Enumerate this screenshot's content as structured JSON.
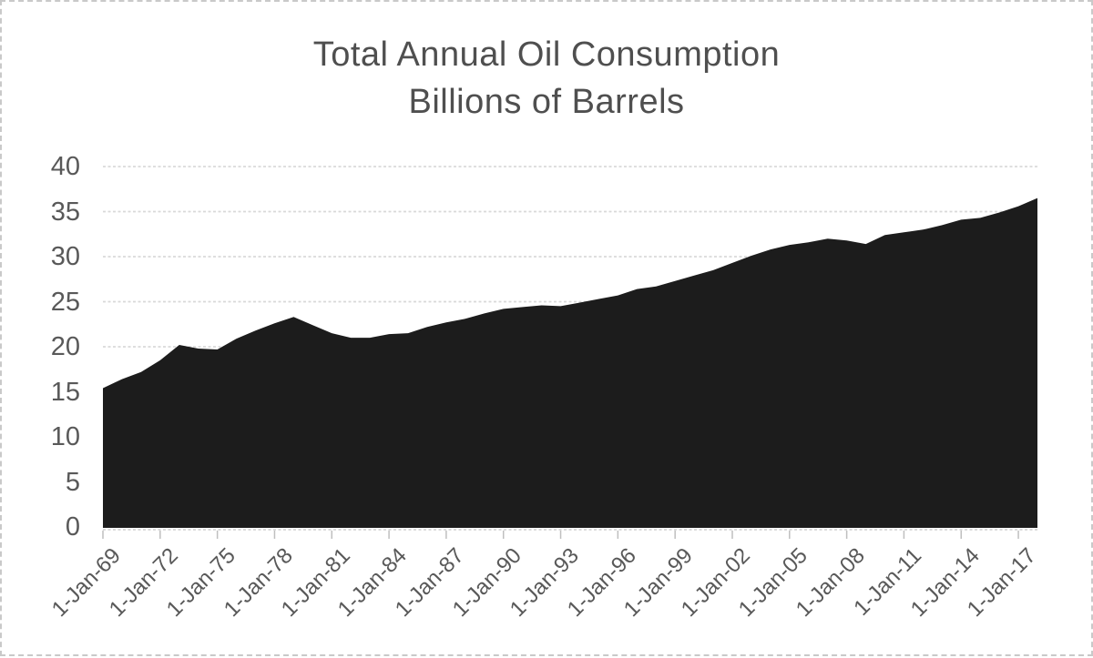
{
  "chart_data": {
    "type": "area",
    "title_line1": "Total Annual Oil Consumption",
    "title_line2": "Billions of Barrels",
    "xlabel": "",
    "ylabel": "",
    "ylim": [
      0,
      40
    ],
    "y_ticks": [
      0,
      5,
      10,
      15,
      20,
      25,
      30,
      35,
      40
    ],
    "grid": true,
    "legend": "none",
    "x_tick_labels": [
      "1-Jan-69",
      "1-Jan-72",
      "1-Jan-75",
      "1-Jan-78",
      "1-Jan-81",
      "1-Jan-84",
      "1-Jan-87",
      "1-Jan-90",
      "1-Jan-93",
      "1-Jan-96",
      "1-Jan-99",
      "1-Jan-02",
      "1-Jan-05",
      "1-Jan-08",
      "1-Jan-11",
      "1-Jan-14",
      "1-Jan-17"
    ],
    "x": [
      1969,
      1970,
      1971,
      1972,
      1973,
      1974,
      1975,
      1976,
      1977,
      1978,
      1979,
      1980,
      1981,
      1982,
      1983,
      1984,
      1985,
      1986,
      1987,
      1988,
      1989,
      1990,
      1991,
      1992,
      1993,
      1994,
      1995,
      1996,
      1997,
      1998,
      1999,
      2000,
      2001,
      2002,
      2003,
      2004,
      2005,
      2006,
      2007,
      2008,
      2009,
      2010,
      2011,
      2012,
      2013,
      2014,
      2015,
      2016,
      2017,
      2018
    ],
    "values": [
      15.4,
      16.4,
      17.2,
      18.5,
      20.2,
      19.8,
      19.7,
      20.9,
      21.8,
      22.6,
      23.3,
      22.4,
      21.5,
      21.0,
      21.0,
      21.4,
      21.5,
      22.2,
      22.7,
      23.1,
      23.7,
      24.2,
      24.4,
      24.6,
      24.5,
      24.9,
      25.3,
      25.7,
      26.4,
      26.7,
      27.3,
      27.9,
      28.5,
      29.3,
      30.1,
      30.8,
      31.3,
      31.6,
      32.0,
      31.8,
      31.4,
      32.4,
      32.7,
      33.0,
      33.5,
      34.1,
      34.3,
      34.9,
      35.6,
      36.5
    ],
    "series_color": "#1c1c1c",
    "gridline_color": "#d9d9d9",
    "axis_line_color": "#cfcfcf",
    "tick_color": "#bfbfbf",
    "axis_text_color": "#595959",
    "title_color": "#4f4f4f",
    "frame_border_color": "#c9c9c9"
  }
}
